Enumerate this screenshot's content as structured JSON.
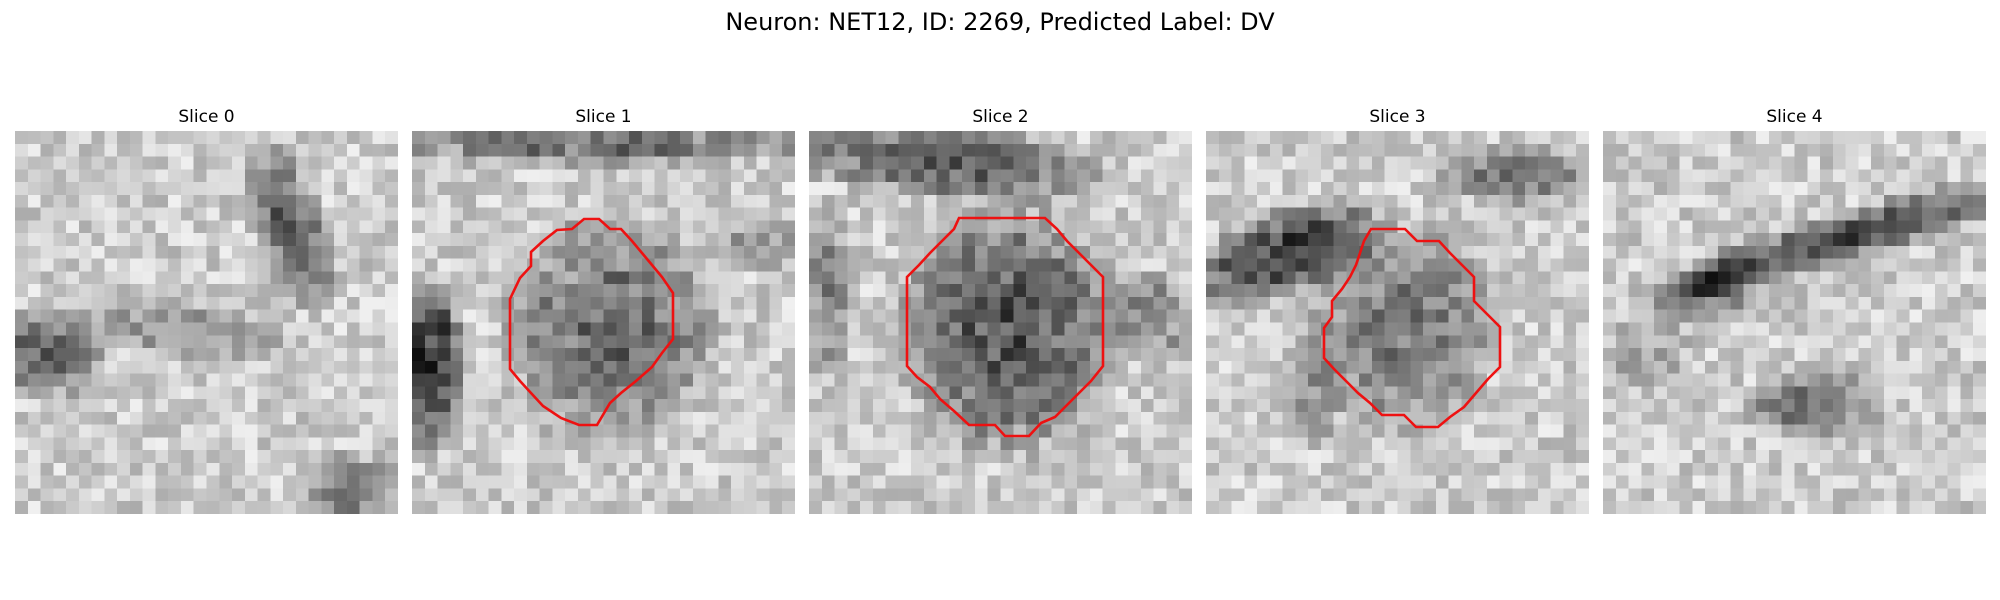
{
  "figure": {
    "suptitle": "Neuron: NET12, ID: 2269, Predicted Label: DV",
    "outline_color": "#ee1111",
    "colormap": "gray"
  },
  "panels": [
    {
      "title": "Slice 0",
      "seed": 11,
      "has_outline": false
    },
    {
      "title": "Slice 1",
      "seed": 23,
      "has_outline": true
    },
    {
      "title": "Slice 2",
      "seed": 37,
      "has_outline": true
    },
    {
      "title": "Slice 3",
      "seed": 53,
      "has_outline": true
    },
    {
      "title": "Slice 4",
      "seed": 71,
      "has_outline": false
    }
  ]
}
